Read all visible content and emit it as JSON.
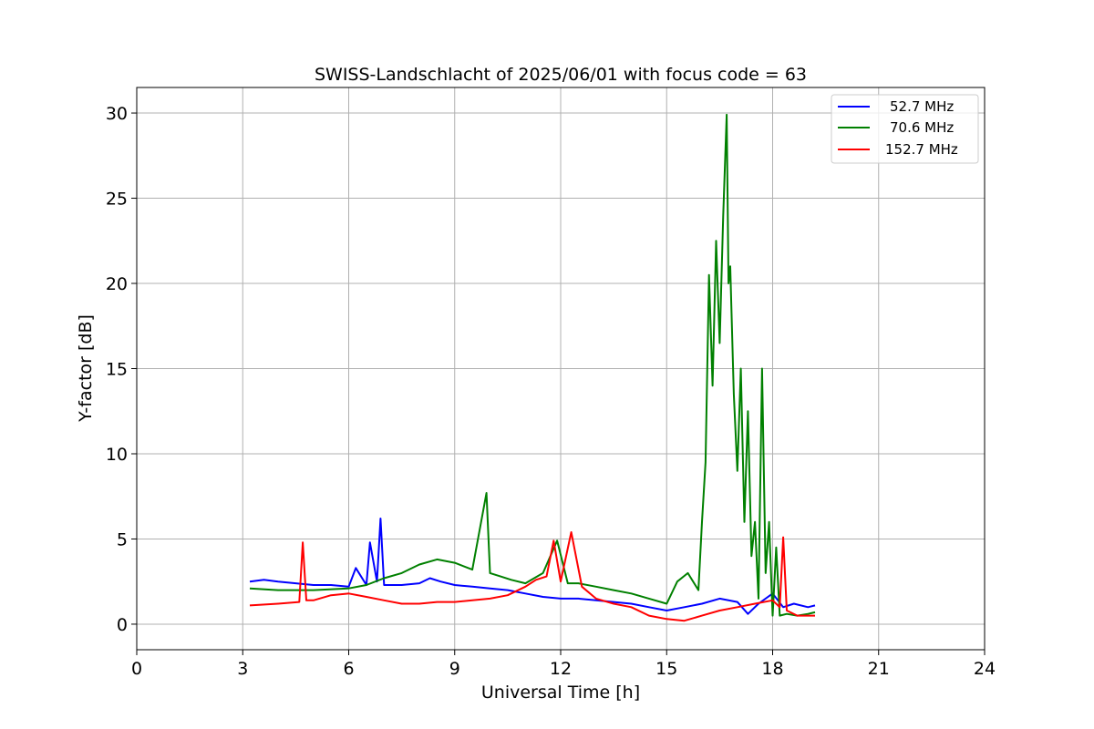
{
  "chart_data": {
    "type": "line",
    "title": "SWISS-Landschlacht of 2025/06/01 with focus code = 63",
    "xlabel": "Universal Time [h]",
    "ylabel": "Y-factor [dB]",
    "xlim": [
      0,
      24
    ],
    "ylim": [
      -1.5,
      31.5
    ],
    "xticks": [
      0,
      3,
      6,
      9,
      12,
      15,
      18,
      21,
      24
    ],
    "yticks": [
      0,
      5,
      10,
      15,
      20,
      25,
      30
    ],
    "grid": true,
    "legend_position": "top-right",
    "series": [
      {
        "name": "52.7 MHz",
        "color": "#0000ff",
        "x": [
          3.2,
          3.6,
          4.0,
          4.5,
          5.0,
          5.5,
          6.0,
          6.2,
          6.5,
          6.6,
          6.8,
          6.9,
          7.0,
          7.5,
          8.0,
          8.3,
          8.6,
          9.0,
          9.5,
          10.0,
          10.5,
          11.0,
          11.5,
          12.0,
          12.5,
          13.0,
          13.5,
          14.0,
          14.5,
          15.0,
          15.5,
          16.0,
          16.5,
          17.0,
          17.3,
          17.6,
          18.0,
          18.3,
          18.6,
          19.0,
          19.2
        ],
        "y": [
          2.5,
          2.6,
          2.5,
          2.4,
          2.3,
          2.3,
          2.2,
          3.3,
          2.3,
          4.8,
          2.5,
          6.2,
          2.3,
          2.3,
          2.4,
          2.7,
          2.5,
          2.3,
          2.2,
          2.1,
          2.0,
          1.8,
          1.6,
          1.5,
          1.5,
          1.4,
          1.3,
          1.2,
          1.0,
          0.8,
          1.0,
          1.2,
          1.5,
          1.3,
          0.6,
          1.2,
          1.8,
          1.0,
          1.2,
          1.0,
          1.1
        ]
      },
      {
        "name": "70.6 MHz",
        "color": "#008000",
        "x": [
          3.2,
          4.0,
          5.0,
          6.0,
          6.5,
          7.0,
          7.5,
          8.0,
          8.5,
          9.0,
          9.5,
          9.9,
          10.0,
          10.3,
          10.6,
          11.0,
          11.5,
          11.9,
          12.2,
          12.5,
          13.0,
          13.5,
          14.0,
          14.5,
          15.0,
          15.3,
          15.6,
          15.9,
          16.0,
          16.1,
          16.2,
          16.3,
          16.4,
          16.5,
          16.6,
          16.7,
          16.75,
          16.8,
          16.9,
          17.0,
          17.1,
          17.2,
          17.3,
          17.4,
          17.5,
          17.6,
          17.7,
          17.8,
          17.9,
          18.0,
          18.1,
          18.2,
          18.4,
          18.7,
          19.0,
          19.2
        ],
        "y": [
          2.1,
          2.0,
          2.0,
          2.1,
          2.3,
          2.7,
          3.0,
          3.5,
          3.8,
          3.6,
          3.2,
          7.7,
          3.0,
          2.8,
          2.6,
          2.4,
          3.0,
          4.9,
          2.4,
          2.4,
          2.2,
          2.0,
          1.8,
          1.5,
          1.2,
          2.5,
          3.0,
          2.0,
          6.0,
          9.5,
          20.5,
          14.0,
          22.5,
          16.5,
          24.0,
          29.9,
          20.0,
          21.0,
          13.5,
          9.0,
          15.0,
          6.0,
          12.5,
          4.0,
          6.0,
          1.5,
          15.0,
          3.0,
          6.0,
          0.5,
          4.5,
          0.5,
          0.6,
          0.5,
          0.6,
          0.7
        ]
      },
      {
        "name": "152.7 MHz",
        "color": "#ff0000",
        "x": [
          3.2,
          4.0,
          4.6,
          4.7,
          4.8,
          5.0,
          5.5,
          6.0,
          6.5,
          7.0,
          7.5,
          8.0,
          8.5,
          9.0,
          9.5,
          10.0,
          10.5,
          11.0,
          11.3,
          11.6,
          11.8,
          12.0,
          12.3,
          12.6,
          13.0,
          13.5,
          14.0,
          14.5,
          15.0,
          15.5,
          16.0,
          16.5,
          17.0,
          17.5,
          18.0,
          18.2,
          18.3,
          18.4,
          18.7,
          19.0,
          19.2
        ],
        "y": [
          1.1,
          1.2,
          1.3,
          4.8,
          1.4,
          1.4,
          1.7,
          1.8,
          1.6,
          1.4,
          1.2,
          1.2,
          1.3,
          1.3,
          1.4,
          1.5,
          1.7,
          2.2,
          2.6,
          2.8,
          4.9,
          2.5,
          5.4,
          2.2,
          1.5,
          1.2,
          1.0,
          0.5,
          0.3,
          0.2,
          0.5,
          0.8,
          1.0,
          1.2,
          1.4,
          1.0,
          5.1,
          0.8,
          0.5,
          0.5,
          0.5
        ]
      }
    ]
  }
}
